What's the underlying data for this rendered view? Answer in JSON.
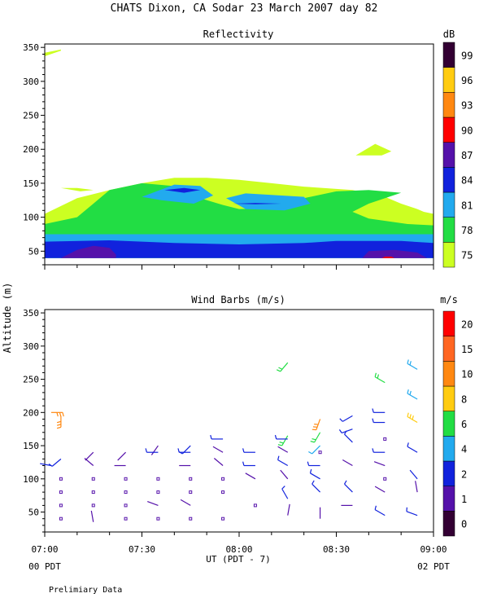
{
  "figure": {
    "title": "CHATS Dixon, CA  Sodar  23 March 2007  day  82",
    "ylabel": "Altitude (m)",
    "xlabel": "UT  (PDT - 7)",
    "left_note": "00 PDT",
    "right_note": "02 PDT",
    "footer": "Prelimiary Data"
  },
  "chart_data": [
    {
      "type": "heatmap",
      "title": "Reflectivity",
      "units": "dB",
      "x_ticks": [
        "07:00",
        "07:30",
        "08:00",
        "08:30",
        "09:00"
      ],
      "y_ticks": [
        50,
        100,
        150,
        200,
        250,
        300,
        350
      ],
      "xlim": [
        "07:00",
        "09:00"
      ],
      "ylim": [
        30,
        355
      ],
      "colorbar": {
        "levels": [
          75,
          78,
          81,
          84,
          87,
          90,
          93,
          96,
          99
        ],
        "colors": [
          "#ccff22",
          "#22dd44",
          "#22aaee",
          "#1122dd",
          "#5511aa",
          "#ff0000",
          "#ff8811",
          "#ffcc11",
          "#330033"
        ]
      },
      "polygons": [
        {
          "level": 75,
          "points": [
            [
              0,
              40
            ],
            [
              120,
              40
            ],
            [
              120,
              105
            ],
            [
              117,
              108
            ],
            [
              115,
              112
            ],
            [
              110,
              120
            ],
            [
              105,
              130
            ],
            [
              95,
              140
            ],
            [
              80,
              145
            ],
            [
              70,
              150
            ],
            [
              60,
              155
            ],
            [
              50,
              158
            ],
            [
              40,
              158
            ],
            [
              30,
              150
            ],
            [
              20,
              140
            ],
            [
              10,
              128
            ],
            [
              0,
              105
            ]
          ]
        },
        {
          "level": 75,
          "points": [
            [
              0,
              337
            ],
            [
              5,
              345
            ],
            [
              5,
              347
            ],
            [
              0,
              342
            ]
          ]
        },
        {
          "level": 75,
          "points": [
            [
              5,
              143
            ],
            [
              11,
              138
            ],
            [
              15,
              140
            ],
            [
              10,
              143
            ]
          ]
        },
        {
          "level": 75,
          "points": [
            [
              96,
              191
            ],
            [
              102,
              208
            ],
            [
              107,
              197
            ],
            [
              104,
              191
            ]
          ]
        },
        {
          "level": 78,
          "points": [
            [
              0,
              40
            ],
            [
              120,
              40
            ],
            [
              120,
              88
            ],
            [
              112,
              90
            ],
            [
              100,
              98
            ],
            [
              95,
              108
            ],
            [
              100,
              120
            ],
            [
              110,
              136
            ],
            [
              100,
              140
            ],
            [
              90,
              138
            ],
            [
              80,
              128
            ],
            [
              75,
              120
            ],
            [
              70,
              113
            ],
            [
              60,
              112
            ],
            [
              55,
              118
            ],
            [
              48,
              128
            ],
            [
              42,
              145
            ],
            [
              30,
              150
            ],
            [
              20,
              140
            ],
            [
              15,
              120
            ],
            [
              10,
              100
            ],
            [
              0,
              90
            ]
          ]
        },
        {
          "level": 81,
          "points": [
            [
              0,
              40
            ],
            [
              120,
              40
            ],
            [
              120,
              75
            ],
            [
              0,
              75
            ]
          ]
        },
        {
          "level": 81,
          "points": [
            [
              30,
              130
            ],
            [
              40,
              148
            ],
            [
              48,
              146
            ],
            [
              52,
              132
            ],
            [
              46,
              120
            ],
            [
              36,
              125
            ]
          ]
        },
        {
          "level": 81,
          "points": [
            [
              56,
              128
            ],
            [
              62,
              135
            ],
            [
              80,
              130
            ],
            [
              82,
              120
            ],
            [
              74,
              110
            ],
            [
              62,
              112
            ]
          ]
        },
        {
          "level": 84,
          "points": [
            [
              0,
              40
            ],
            [
              120,
              40
            ],
            [
              120,
              62
            ],
            [
              110,
              65
            ],
            [
              90,
              65
            ],
            [
              80,
              62
            ],
            [
              60,
              60
            ],
            [
              40,
              62
            ],
            [
              20,
              66
            ],
            [
              0,
              64
            ]
          ]
        },
        {
          "level": 84,
          "points": [
            [
              37,
              140
            ],
            [
              43,
              143
            ],
            [
              48,
              140
            ],
            [
              43,
              136
            ]
          ]
        },
        {
          "level": 84,
          "points": [
            [
              58,
              120
            ],
            [
              65,
              121
            ],
            [
              73,
              120
            ],
            [
              65,
              119
            ]
          ]
        },
        {
          "level": 87,
          "points": [
            [
              5,
              40
            ],
            [
              22,
              40
            ],
            [
              22,
              45
            ],
            [
              20,
              55
            ],
            [
              15,
              58
            ],
            [
              10,
              52
            ]
          ]
        },
        {
          "level": 87,
          "points": [
            [
              98,
              40
            ],
            [
              118,
              40
            ],
            [
              115,
              48
            ],
            [
              108,
              52
            ],
            [
              100,
              50
            ]
          ]
        },
        {
          "level": 90,
          "points": [
            [
              104,
              40
            ],
            [
              108,
              40
            ],
            [
              107,
              42
            ],
            [
              105,
              42
            ]
          ]
        }
      ]
    },
    {
      "type": "scatter",
      "title": "Wind Barbs (m/s)",
      "units": "m/s",
      "x_ticks": [
        "07:00",
        "07:30",
        "08:00",
        "08:30",
        "09:00"
      ],
      "y_ticks": [
        50,
        100,
        150,
        200,
        250,
        300,
        350
      ],
      "xlim": [
        "07:00",
        "09:00"
      ],
      "ylim": [
        20,
        355
      ],
      "colorbar": {
        "levels": [
          0,
          1,
          2,
          4,
          6,
          8,
          10,
          15,
          20
        ],
        "colors": [
          "#330033",
          "#5511aa",
          "#1122dd",
          "#22aaee",
          "#22dd44",
          "#ffcc11",
          "#ff8811",
          "#ff6622",
          "#ff0000"
        ]
      },
      "barbs": [
        {
          "t": 2,
          "z": 120,
          "dir": 280,
          "spd": 2
        },
        {
          "t": 5,
          "z": 130,
          "dir": 230,
          "spd": 3
        },
        {
          "t": 2,
          "z": 200,
          "dir": 90,
          "spd": 14
        },
        {
          "t": 5,
          "z": 195,
          "dir": 180,
          "spd": 13
        },
        {
          "t": 15,
          "z": 140,
          "dir": 225,
          "spd": 1.5
        },
        {
          "t": 15,
          "z": 120,
          "dir": 310,
          "spd": 1.5
        },
        {
          "t": 15,
          "z": 35,
          "dir": 350,
          "spd": 1.5
        },
        {
          "t": 25,
          "z": 140,
          "dir": 225,
          "spd": 1.5
        },
        {
          "t": 25,
          "z": 120,
          "dir": 270,
          "spd": 1.5
        },
        {
          "t": 35,
          "z": 150,
          "dir": 215,
          "spd": 1.5
        },
        {
          "t": 35,
          "z": 140,
          "dir": 270,
          "spd": 3
        },
        {
          "t": 35,
          "z": 60,
          "dir": 290,
          "spd": 1.5
        },
        {
          "t": 45,
          "z": 150,
          "dir": 225,
          "spd": 3
        },
        {
          "t": 45,
          "z": 140,
          "dir": 270,
          "spd": 3
        },
        {
          "t": 45,
          "z": 120,
          "dir": 270,
          "spd": 1.5
        },
        {
          "t": 45,
          "z": 60,
          "dir": 300,
          "spd": 1.5
        },
        {
          "t": 55,
          "z": 160,
          "dir": 270,
          "spd": 3
        },
        {
          "t": 55,
          "z": 140,
          "dir": 300,
          "spd": 1.5
        },
        {
          "t": 55,
          "z": 120,
          "dir": 310,
          "spd": 1.5
        },
        {
          "t": 65,
          "z": 140,
          "dir": 270,
          "spd": 3
        },
        {
          "t": 65,
          "z": 120,
          "dir": 270,
          "spd": 3
        },
        {
          "t": 65,
          "z": 100,
          "dir": 300,
          "spd": 1.5
        },
        {
          "t": 75,
          "z": 275,
          "dir": 220,
          "spd": 6
        },
        {
          "t": 75,
          "z": 165,
          "dir": 210,
          "spd": 6
        },
        {
          "t": 75,
          "z": 160,
          "dir": 270,
          "spd": 3
        },
        {
          "t": 75,
          "z": 140,
          "dir": 300,
          "spd": 1.5
        },
        {
          "t": 75,
          "z": 120,
          "dir": 300,
          "spd": 3
        },
        {
          "t": 75,
          "z": 100,
          "dir": 320,
          "spd": 1.5
        },
        {
          "t": 75,
          "z": 70,
          "dir": 330,
          "spd": 3
        },
        {
          "t": 75,
          "z": 45,
          "dir": 10,
          "spd": 1.5
        },
        {
          "t": 85,
          "z": 190,
          "dir": 200,
          "spd": 10
        },
        {
          "t": 85,
          "z": 170,
          "dir": 210,
          "spd": 6
        },
        {
          "t": 85,
          "z": 150,
          "dir": 225,
          "spd": 4
        },
        {
          "t": 85,
          "z": 120,
          "dir": 270,
          "spd": 3
        },
        {
          "t": 85,
          "z": 100,
          "dir": 300,
          "spd": 3
        },
        {
          "t": 85,
          "z": 80,
          "dir": 315,
          "spd": 3
        },
        {
          "t": 85,
          "z": 40,
          "dir": 360,
          "spd": 1.5
        },
        {
          "t": 95,
          "z": 195,
          "dir": 240,
          "spd": 3
        },
        {
          "t": 95,
          "z": 175,
          "dir": 250,
          "spd": 3
        },
        {
          "t": 95,
          "z": 155,
          "dir": 315,
          "spd": 3
        },
        {
          "t": 95,
          "z": 120,
          "dir": 300,
          "spd": 1.5
        },
        {
          "t": 95,
          "z": 80,
          "dir": 315,
          "spd": 3
        },
        {
          "t": 95,
          "z": 60,
          "dir": 270,
          "spd": 1.5
        },
        {
          "t": 105,
          "z": 245,
          "dir": 300,
          "spd": 6
        },
        {
          "t": 105,
          "z": 200,
          "dir": 270,
          "spd": 3
        },
        {
          "t": 105,
          "z": 185,
          "dir": 270,
          "spd": 3
        },
        {
          "t": 105,
          "z": 140,
          "dir": 270,
          "spd": 3
        },
        {
          "t": 105,
          "z": 120,
          "dir": 290,
          "spd": 1.5
        },
        {
          "t": 105,
          "z": 80,
          "dir": 300,
          "spd": 1.5
        },
        {
          "t": 105,
          "z": 45,
          "dir": 300,
          "spd": 3
        },
        {
          "t": 115,
          "z": 265,
          "dir": 300,
          "spd": 5
        },
        {
          "t": 115,
          "z": 220,
          "dir": 300,
          "spd": 5
        },
        {
          "t": 115,
          "z": 185,
          "dir": 300,
          "spd": 8
        },
        {
          "t": 115,
          "z": 140,
          "dir": 300,
          "spd": 3
        },
        {
          "t": 115,
          "z": 100,
          "dir": 320,
          "spd": 2
        },
        {
          "t": 115,
          "z": 80,
          "dir": 350,
          "spd": 1.5
        },
        {
          "t": 115,
          "z": 45,
          "dir": 290,
          "spd": 3
        }
      ],
      "calm_points": [
        {
          "t": 5,
          "z": 100
        },
        {
          "t": 5,
          "z": 80
        },
        {
          "t": 5,
          "z": 60
        },
        {
          "t": 5,
          "z": 40
        },
        {
          "t": 15,
          "z": 100
        },
        {
          "t": 15,
          "z": 80
        },
        {
          "t": 15,
          "z": 60
        },
        {
          "t": 25,
          "z": 100
        },
        {
          "t": 25,
          "z": 80
        },
        {
          "t": 25,
          "z": 60
        },
        {
          "t": 25,
          "z": 40
        },
        {
          "t": 35,
          "z": 100
        },
        {
          "t": 35,
          "z": 80
        },
        {
          "t": 35,
          "z": 40
        },
        {
          "t": 45,
          "z": 100
        },
        {
          "t": 45,
          "z": 80
        },
        {
          "t": 45,
          "z": 40
        },
        {
          "t": 55,
          "z": 100
        },
        {
          "t": 55,
          "z": 80
        },
        {
          "t": 55,
          "z": 40
        },
        {
          "t": 65,
          "z": 60
        },
        {
          "t": 85,
          "z": 140
        },
        {
          "t": 105,
          "z": 160
        },
        {
          "t": 105,
          "z": 100
        }
      ]
    }
  ]
}
